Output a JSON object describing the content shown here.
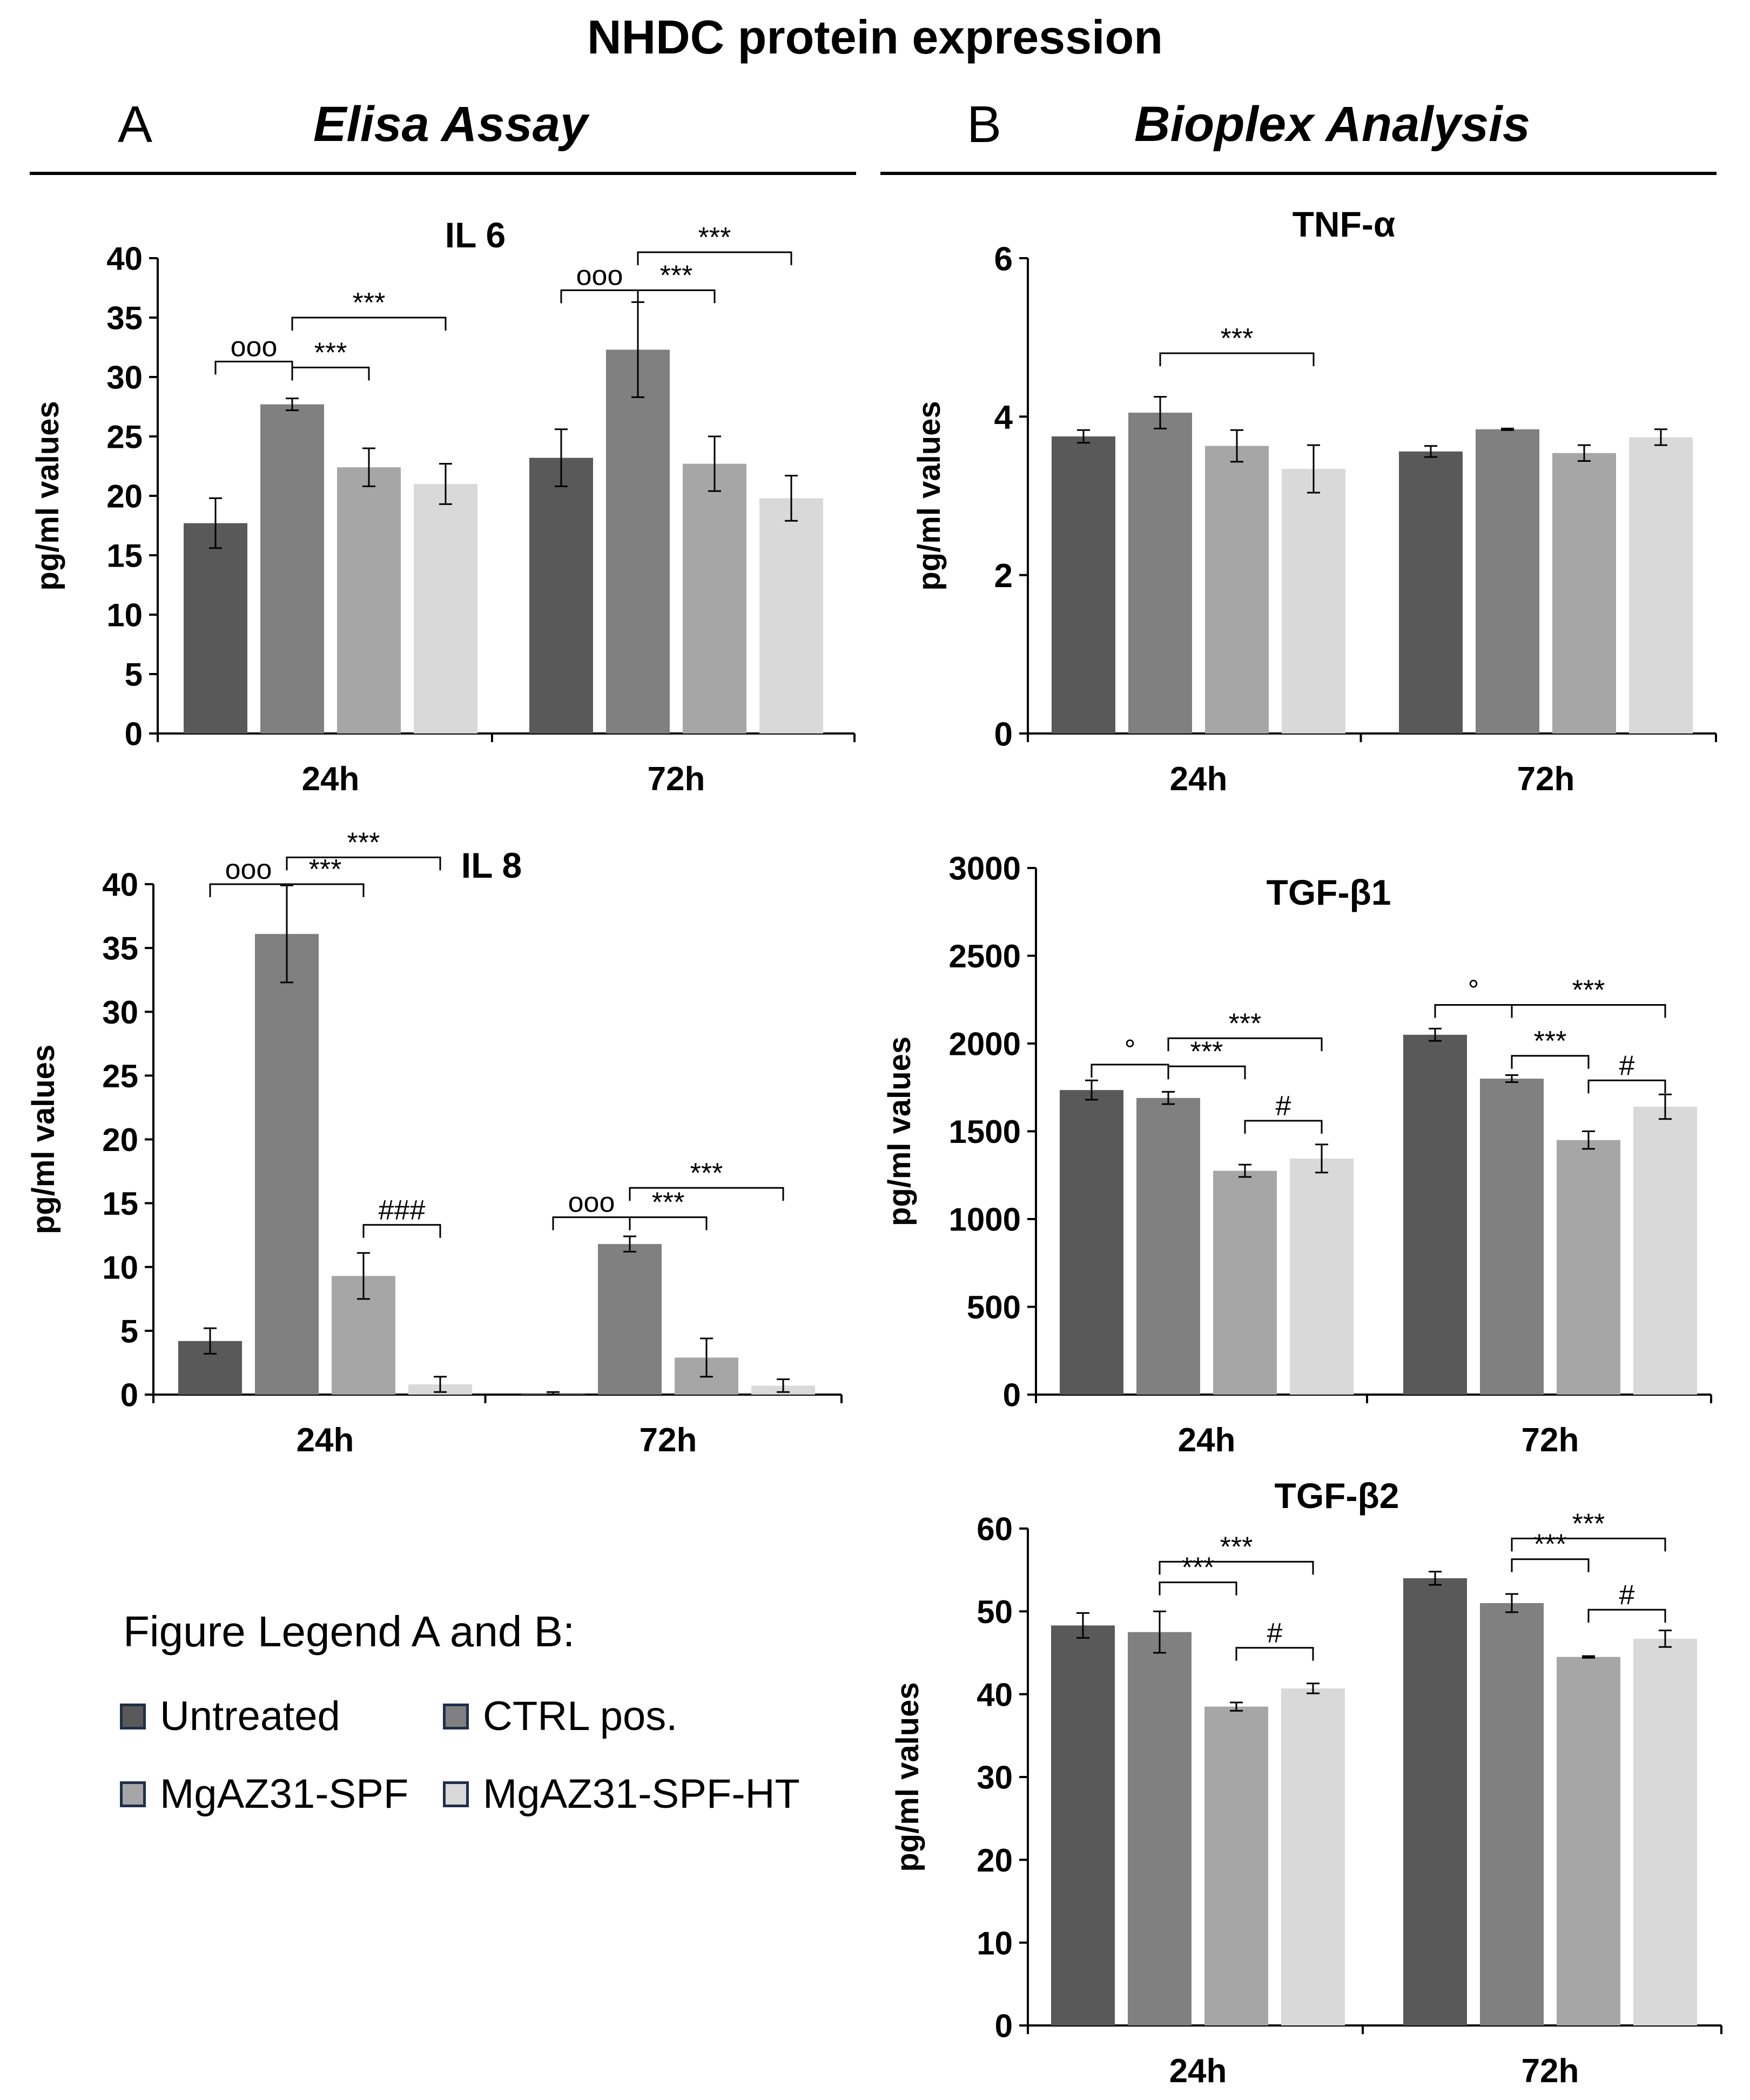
{
  "title": "NHDC protein expression",
  "panels": [
    {
      "letter": "A",
      "heading": "Elisa Assay"
    },
    {
      "letter": "B",
      "heading": "Bioplex Analysis"
    }
  ],
  "colors": {
    "Untreated": "#595959",
    "CTRL pos.": "#808080",
    "MgAZ31-SPF": "#a6a6a6",
    "MgAZ31-SPF-HT": "#d9d9d9",
    "swatch_border": "#1f2f4a"
  },
  "legend": {
    "title": "Figure Legend A and B:",
    "items": [
      "Untreated",
      "CTRL pos.",
      "MgAZ31-SPF",
      "MgAZ31-SPF-HT"
    ]
  },
  "chart_data": [
    {
      "id": "il6",
      "type": "bar",
      "title": "IL 6",
      "ylabel": "pg/ml values",
      "categories": [
        "24h",
        "72h"
      ],
      "ylim": [
        0,
        40
      ],
      "yticks": [
        0,
        5,
        10,
        15,
        20,
        25,
        30,
        35,
        40
      ],
      "series": [
        {
          "name": "Untreated",
          "values": [
            17.7,
            23.2
          ],
          "errors": [
            2.1,
            2.4
          ]
        },
        {
          "name": "CTRL pos.",
          "values": [
            27.7,
            32.3
          ],
          "errors": [
            0.5,
            4.0
          ]
        },
        {
          "name": "MgAZ31-SPF",
          "values": [
            22.4,
            22.7
          ],
          "errors": [
            1.6,
            2.3
          ]
        },
        {
          "name": "MgAZ31-SPF-HT",
          "values": [
            21.0,
            19.8
          ],
          "errors": [
            1.7,
            1.9
          ]
        }
      ],
      "annotations": [
        {
          "group": 0,
          "from": 0,
          "to": 1,
          "level": 31.3,
          "label": "ooo"
        },
        {
          "group": 0,
          "from": 1,
          "to": 2,
          "level": 30.8,
          "label": "***"
        },
        {
          "group": 0,
          "from": 1,
          "to": 3,
          "level": 35.0,
          "label": "***"
        },
        {
          "group": 1,
          "from": 0,
          "to": 1,
          "level": 37.3,
          "label": "ooo"
        },
        {
          "group": 1,
          "from": 1,
          "to": 2,
          "level": 37.3,
          "label": "***"
        },
        {
          "group": 1,
          "from": 1,
          "to": 3,
          "level": 40.5,
          "label": "***"
        }
      ]
    },
    {
      "id": "il8",
      "type": "bar",
      "title": "IL 8",
      "ylabel": "pg/ml values",
      "categories": [
        "24h",
        "72h"
      ],
      "ylim": [
        0,
        40
      ],
      "yticks": [
        0,
        5,
        10,
        15,
        20,
        25,
        30,
        35,
        40
      ],
      "series": [
        {
          "name": "Untreated",
          "values": [
            4.2,
            0.1
          ],
          "errors": [
            1.0,
            0.1
          ]
        },
        {
          "name": "CTRL pos.",
          "values": [
            36.1,
            11.8
          ],
          "errors": [
            3.8,
            0.6
          ]
        },
        {
          "name": "MgAZ31-SPF",
          "values": [
            9.3,
            2.9
          ],
          "errors": [
            1.8,
            1.5
          ]
        },
        {
          "name": "MgAZ31-SPF-HT",
          "values": [
            0.8,
            0.7
          ],
          "errors": [
            0.6,
            0.5
          ]
        }
      ],
      "annotations": [
        {
          "group": 0,
          "from": 0,
          "to": 1,
          "level": 40.0,
          "label": "ooo"
        },
        {
          "group": 0,
          "from": 1,
          "to": 2,
          "level": 40.0,
          "label": "***"
        },
        {
          "group": 0,
          "from": 1,
          "to": 3,
          "level": 42.1,
          "label": "***"
        },
        {
          "group": 0,
          "from": 2,
          "to": 3,
          "level": 13.3,
          "label": "###"
        },
        {
          "group": 1,
          "from": 0,
          "to": 1,
          "level": 13.9,
          "label": "ooo"
        },
        {
          "group": 1,
          "from": 1,
          "to": 2,
          "level": 13.9,
          "label": "***"
        },
        {
          "group": 1,
          "from": 1,
          "to": 3,
          "level": 16.2,
          "label": "***"
        }
      ]
    },
    {
      "id": "tnfa",
      "type": "bar",
      "title": "TNF-α",
      "ylabel": "pg/ml values",
      "categories": [
        "24h",
        "72h"
      ],
      "ylim": [
        0,
        6
      ],
      "yticks": [
        0,
        2,
        4,
        6
      ],
      "series": [
        {
          "name": "Untreated",
          "values": [
            3.75,
            3.56
          ],
          "errors": [
            0.08,
            0.07
          ]
        },
        {
          "name": "CTRL pos.",
          "values": [
            4.05,
            3.84
          ],
          "errors": [
            0.2,
            0.01
          ]
        },
        {
          "name": "MgAZ31-SPF",
          "values": [
            3.63,
            3.54
          ],
          "errors": [
            0.2,
            0.1
          ]
        },
        {
          "name": "MgAZ31-SPF-HT",
          "values": [
            3.34,
            3.74
          ],
          "errors": [
            0.3,
            0.1
          ]
        }
      ],
      "annotations": [
        {
          "group": 0,
          "from": 1,
          "to": 3,
          "level": 4.8,
          "label": "***"
        }
      ]
    },
    {
      "id": "tgfb1",
      "type": "bar",
      "title": "TGF-β1",
      "ylabel": "pg/ml values",
      "categories": [
        "24h",
        "72h"
      ],
      "ylim": [
        0,
        3000
      ],
      "yticks": [
        0,
        500,
        1000,
        1500,
        2000,
        2500,
        3000
      ],
      "series": [
        {
          "name": "Untreated",
          "values": [
            1735,
            2050
          ],
          "errors": [
            55,
            35
          ]
        },
        {
          "name": "CTRL pos.",
          "values": [
            1690,
            1800
          ],
          "errors": [
            35,
            20
          ]
        },
        {
          "name": "MgAZ31-SPF",
          "values": [
            1275,
            1450
          ],
          "errors": [
            35,
            50
          ]
        },
        {
          "name": "MgAZ31-SPF-HT",
          "values": [
            1345,
            1640
          ],
          "errors": [
            80,
            70
          ]
        }
      ],
      "annotations": [
        {
          "group": 0,
          "from": 0,
          "to": 1,
          "level": 1880,
          "label": "°"
        },
        {
          "group": 0,
          "from": 1,
          "to": 2,
          "level": 1870,
          "label": "***"
        },
        {
          "group": 0,
          "from": 1,
          "to": 3,
          "level": 2030,
          "label": "***"
        },
        {
          "group": 0,
          "from": 2,
          "to": 3,
          "level": 1560,
          "label": "#"
        },
        {
          "group": 1,
          "from": 0,
          "to": 1,
          "level": 2220,
          "label": "°"
        },
        {
          "group": 1,
          "from": 1,
          "to": 2,
          "level": 1930,
          "label": "***"
        },
        {
          "group": 1,
          "from": 1,
          "to": 3,
          "level": 2220,
          "label": "***"
        },
        {
          "group": 1,
          "from": 2,
          "to": 3,
          "level": 1790,
          "label": "#"
        }
      ]
    },
    {
      "id": "tgfb2",
      "type": "bar",
      "title": "TGF-β2",
      "ylabel": "pg/ml values",
      "categories": [
        "24h",
        "72h"
      ],
      "ylim": [
        0,
        60
      ],
      "yticks": [
        0,
        10,
        20,
        30,
        40,
        50,
        60
      ],
      "series": [
        {
          "name": "Untreated",
          "values": [
            48.3,
            54.0
          ],
          "errors": [
            1.5,
            0.8
          ]
        },
        {
          "name": "CTRL pos.",
          "values": [
            47.5,
            51.0
          ],
          "errors": [
            2.5,
            1.1
          ]
        },
        {
          "name": "MgAZ31-SPF",
          "values": [
            38.5,
            44.5
          ],
          "errors": [
            0.5,
            0.1
          ]
        },
        {
          "name": "MgAZ31-SPF-HT",
          "values": [
            40.7,
            46.7
          ],
          "errors": [
            0.6,
            1.0
          ]
        }
      ],
      "annotations": [
        {
          "group": 0,
          "from": 1,
          "to": 2,
          "level": 53.5,
          "label": "***"
        },
        {
          "group": 0,
          "from": 1,
          "to": 3,
          "level": 56.0,
          "label": "***"
        },
        {
          "group": 0,
          "from": 2,
          "to": 3,
          "level": 45.6,
          "label": "#"
        },
        {
          "group": 1,
          "from": 1,
          "to": 2,
          "level": 56.3,
          "label": "***"
        },
        {
          "group": 1,
          "from": 1,
          "to": 3,
          "level": 58.8,
          "label": "***"
        },
        {
          "group": 1,
          "from": 2,
          "to": 3,
          "level": 50.2,
          "label": "#"
        }
      ]
    }
  ]
}
